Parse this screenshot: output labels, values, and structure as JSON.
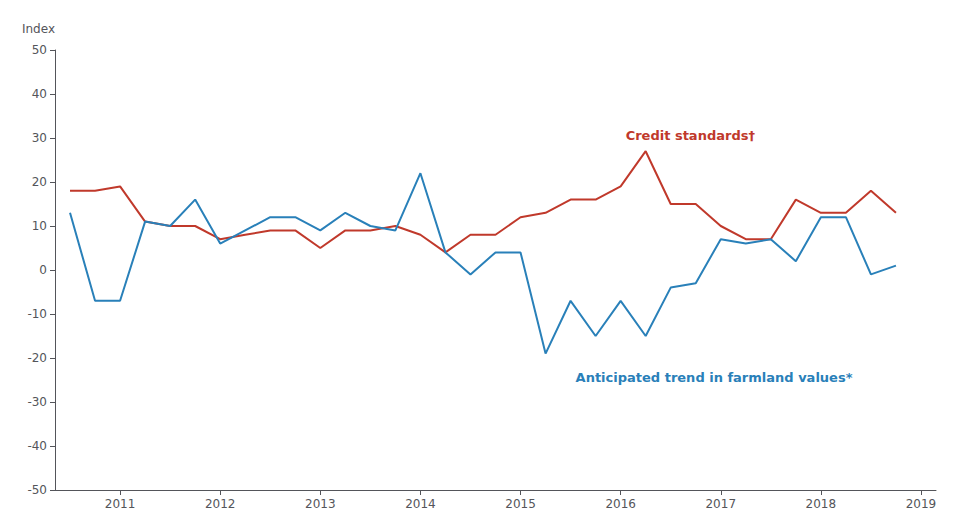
{
  "chart_data": {
    "type": "line",
    "y_label": "Index",
    "x": [
      2010.5,
      2010.75,
      2011.0,
      2011.25,
      2011.5,
      2011.75,
      2012.0,
      2012.25,
      2012.5,
      2012.75,
      2013.0,
      2013.25,
      2013.5,
      2013.75,
      2014.0,
      2014.25,
      2014.5,
      2014.75,
      2015.0,
      2015.25,
      2015.5,
      2015.75,
      2016.0,
      2016.25,
      2016.5,
      2016.75,
      2017.0,
      2017.25,
      2017.5,
      2017.75,
      2018.0,
      2018.25,
      2018.5,
      2018.75
    ],
    "series": [
      {
        "color": "#C0392B",
        "values": [
          18,
          18,
          19,
          11,
          10,
          10,
          7,
          8,
          9,
          9,
          5,
          9,
          9,
          10,
          8,
          4,
          8,
          8,
          12,
          13,
          16,
          16,
          19,
          27,
          15,
          15,
          10,
          7,
          7,
          16,
          13,
          13,
          18,
          13
        ]
      },
      {
        "color": "#2980B9",
        "values": [
          13,
          -7,
          -7,
          11,
          10,
          16,
          6,
          9,
          12,
          12,
          9,
          13,
          10,
          9,
          22,
          4,
          -1,
          4,
          4,
          -19,
          -7,
          -15,
          -7,
          -15,
          -4,
          -3,
          7,
          6,
          7,
          2,
          12,
          12,
          -1,
          1
        ]
      }
    ],
    "annotations": [
      {
        "text": "Credit standards†",
        "x": 2016.05,
        "y": 29,
        "color": "#C0392B"
      },
      {
        "text": "Anticipated trend in farmland values*",
        "x": 2015.55,
        "y": -23,
        "color": "#2980B9"
      }
    ],
    "xlim": [
      2010.35,
      2019.15
    ],
    "xticks": [
      2011,
      2012,
      2013,
      2014,
      2015,
      2016,
      2017,
      2018,
      2019
    ],
    "ylim": [
      -50,
      50
    ],
    "yticks": [
      -50,
      -40,
      -30,
      -20,
      -10,
      0,
      10,
      20,
      30,
      40,
      50
    ],
    "grid": false
  }
}
